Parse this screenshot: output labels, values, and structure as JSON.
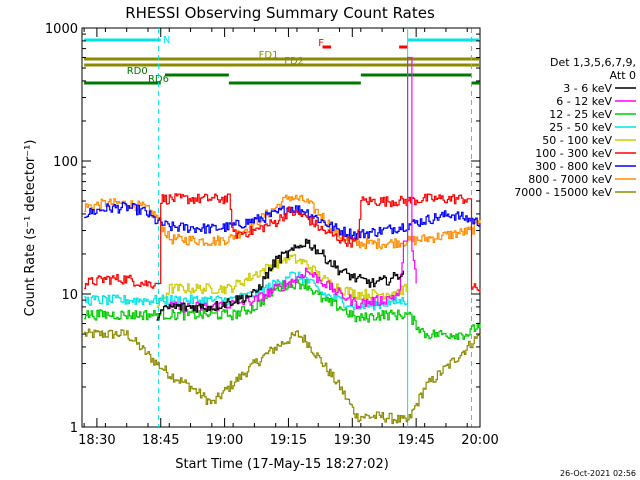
{
  "chart_data": {
    "type": "line",
    "title": "RHESSI Observing Summary Count Rates",
    "xlabel": "Start Time (17-May-15 18:27:02)",
    "ylabel": "Count Rate (s⁻¹ detector⁻¹)",
    "yscale": "log",
    "ylim": [
      1,
      1000
    ],
    "xlim": [
      -0.5,
      93
    ],
    "x_unit": "minutes after 18:27:02",
    "y_ticks": [
      {
        "v": 1,
        "label": "1"
      },
      {
        "v": 10,
        "label": "10"
      },
      {
        "v": 100,
        "label": "100"
      },
      {
        "v": 1000,
        "label": "1000"
      }
    ],
    "x_ticks": [
      {
        "t": 3,
        "label": "18:30"
      },
      {
        "t": 18,
        "label": "18:45"
      },
      {
        "t": 33,
        "label": "19:00"
      },
      {
        "t": 48,
        "label": "19:15"
      },
      {
        "t": 63,
        "label": "19:30"
      },
      {
        "t": 78,
        "label": "19:45"
      },
      {
        "t": 93,
        "label": "20:00"
      }
    ],
    "legend": {
      "position": "right",
      "header": [
        "Det 1,3,5,6,7,9,",
        "Att 0"
      ],
      "entries": [
        {
          "label": "3 - 6 keV",
          "color": "#000000"
        },
        {
          "label": "6 - 12 keV",
          "color": "#ff00ff"
        },
        {
          "label": "12 - 25 keV",
          "color": "#00cc00"
        },
        {
          "label": "25 - 50 keV",
          "color": "#00e5e5"
        },
        {
          "label": "50 - 100 keV",
          "color": "#cccc00"
        },
        {
          "label": "100 - 300 keV",
          "color": "#ff0000"
        },
        {
          "label": "300 - 800 keV",
          "color": "#0000ff"
        },
        {
          "label": "800 - 7000 keV",
          "color": "#ff8c00"
        },
        {
          "label": "7000 - 15000 keV",
          "color": "#8b8b00"
        }
      ]
    },
    "bands": [
      {
        "label": "N",
        "color": "#00e5e5",
        "segments": [
          [
            0,
            18
          ],
          [
            76,
            93
          ]
        ],
        "level": 1
      },
      {
        "label": "F",
        "color": "#ff0000",
        "segments": [
          [
            56,
            58
          ],
          [
            74,
            76
          ]
        ],
        "level": 2
      },
      {
        "label": "FD1",
        "color": "#8b8b00",
        "segments": [
          [
            0,
            93
          ]
        ],
        "level": 3
      },
      {
        "label": "FD2",
        "color": "#8b8b00",
        "segments": [
          [
            0,
            93
          ]
        ],
        "level": 4
      },
      {
        "label": "RD0",
        "color": "#007700",
        "segments": [
          [
            19,
            34
          ],
          [
            65,
            91
          ]
        ],
        "level": 5
      },
      {
        "label": "RD6",
        "color": "#007700",
        "segments": [
          [
            0,
            18
          ],
          [
            34,
            65
          ],
          [
            91,
            93
          ]
        ],
        "level": 6
      }
    ],
    "markers": [
      {
        "t": 17.5,
        "color": "#00e5e5",
        "style": "dashed"
      },
      {
        "t": 76,
        "color": "#00e5e5",
        "style": "solid"
      },
      {
        "t": 91,
        "color": "#00e5e5",
        "style": "dashed"
      }
    ],
    "series": [
      {
        "name": "3 - 6 keV",
        "color": "#000000",
        "points": [
          [
            17,
            7
          ],
          [
            20,
            8
          ],
          [
            30,
            8
          ],
          [
            40,
            10
          ],
          [
            45,
            18
          ],
          [
            50,
            22
          ],
          [
            52,
            25
          ],
          [
            55,
            21
          ],
          [
            60,
            15
          ],
          [
            64,
            13
          ],
          [
            68,
            12
          ],
          [
            72,
            13
          ],
          [
            74,
            14
          ],
          [
            75,
            15
          ]
        ]
      },
      {
        "name": "6 - 12 keV",
        "color": "#ff00ff",
        "points": [
          [
            20,
            8
          ],
          [
            30,
            8
          ],
          [
            40,
            9
          ],
          [
            45,
            11
          ],
          [
            50,
            13
          ],
          [
            52,
            15
          ],
          [
            55,
            13
          ],
          [
            60,
            10
          ],
          [
            64,
            8.5
          ],
          [
            70,
            9
          ],
          [
            74,
            10
          ],
          [
            75,
            25
          ],
          [
            76,
            600
          ],
          [
            77,
            20
          ],
          [
            78,
            12
          ]
        ]
      },
      {
        "name": "12 - 25 keV",
        "color": "#00cc00",
        "points": [
          [
            0,
            7
          ],
          [
            10,
            7
          ],
          [
            17,
            7
          ],
          [
            20,
            7
          ],
          [
            30,
            7
          ],
          [
            35,
            7
          ],
          [
            40,
            8
          ],
          [
            45,
            11
          ],
          [
            48,
            12
          ],
          [
            52,
            12
          ],
          [
            56,
            9
          ],
          [
            60,
            8
          ],
          [
            64,
            6.5
          ],
          [
            70,
            7
          ],
          [
            76,
            7
          ],
          [
            80,
            5
          ],
          [
            90,
            5
          ],
          [
            93,
            6
          ]
        ]
      },
      {
        "name": "25 - 50 keV",
        "color": "#00e5e5",
        "points": [
          [
            0,
            9
          ],
          [
            10,
            9
          ],
          [
            17,
            9
          ],
          [
            20,
            9
          ],
          [
            30,
            9
          ],
          [
            34,
            9
          ],
          [
            40,
            10
          ],
          [
            45,
            12
          ],
          [
            48,
            14
          ],
          [
            52,
            13
          ],
          [
            56,
            10
          ],
          [
            60,
            9
          ],
          [
            64,
            8
          ],
          [
            70,
            8.5
          ],
          [
            76,
            9
          ]
        ]
      },
      {
        "name": "50 - 100 keV",
        "color": "#cccc00",
        "points": [
          [
            17,
            8
          ],
          [
            20,
            11
          ],
          [
            30,
            11
          ],
          [
            34,
            11
          ],
          [
            40,
            14
          ],
          [
            45,
            17
          ],
          [
            48,
            19
          ],
          [
            52,
            17
          ],
          [
            56,
            13
          ],
          [
            60,
            11
          ],
          [
            64,
            10
          ],
          [
            70,
            10
          ],
          [
            76,
            11
          ]
        ]
      },
      {
        "name": "100 - 300 keV",
        "color": "#ff0000",
        "points": [
          [
            0,
            12
          ],
          [
            5,
            13
          ],
          [
            10,
            13
          ],
          [
            14,
            12
          ],
          [
            17,
            12
          ],
          [
            18,
            52
          ],
          [
            30,
            52
          ],
          [
            34,
            52
          ],
          [
            35,
            28
          ],
          [
            40,
            30
          ],
          [
            45,
            35
          ],
          [
            48,
            42
          ],
          [
            52,
            38
          ],
          [
            56,
            30
          ],
          [
            60,
            26
          ],
          [
            64,
            24
          ],
          [
            65,
            50
          ],
          [
            72,
            50
          ],
          [
            76,
            50
          ],
          [
            80,
            52
          ],
          [
            90,
            52
          ],
          [
            91,
            11
          ],
          [
            93,
            11
          ]
        ]
      },
      {
        "name": "300 - 800 keV",
        "color": "#0000ff",
        "points": [
          [
            0,
            40
          ],
          [
            5,
            44
          ],
          [
            10,
            45
          ],
          [
            14,
            42
          ],
          [
            17,
            35
          ],
          [
            20,
            32
          ],
          [
            30,
            31
          ],
          [
            34,
            32
          ],
          [
            40,
            36
          ],
          [
            45,
            40
          ],
          [
            48,
            45
          ],
          [
            52,
            42
          ],
          [
            56,
            35
          ],
          [
            60,
            30
          ],
          [
            64,
            28
          ],
          [
            70,
            30
          ],
          [
            76,
            33
          ],
          [
            80,
            36
          ],
          [
            86,
            40
          ],
          [
            91,
            36
          ],
          [
            93,
            34
          ]
        ]
      },
      {
        "name": "800 - 7000 keV",
        "color": "#ff8c00",
        "points": [
          [
            0,
            45
          ],
          [
            5,
            48
          ],
          [
            10,
            48
          ],
          [
            14,
            45
          ],
          [
            17,
            38
          ],
          [
            20,
            26
          ],
          [
            30,
            25
          ],
          [
            34,
            26
          ],
          [
            40,
            34
          ],
          [
            45,
            45
          ],
          [
            48,
            54
          ],
          [
            52,
            50
          ],
          [
            56,
            38
          ],
          [
            60,
            27
          ],
          [
            64,
            24
          ],
          [
            70,
            24
          ],
          [
            76,
            25
          ],
          [
            80,
            26
          ],
          [
            86,
            28
          ],
          [
            91,
            30
          ],
          [
            93,
            36
          ]
        ]
      },
      {
        "name": "7000 - 15000 keV",
        "color": "#8b8b00",
        "points": [
          [
            0,
            5
          ],
          [
            10,
            5
          ],
          [
            17,
            3
          ],
          [
            20,
            2.5
          ],
          [
            25,
            2
          ],
          [
            30,
            1.5
          ],
          [
            34,
            2
          ],
          [
            40,
            3
          ],
          [
            45,
            4
          ],
          [
            50,
            5
          ],
          [
            52,
            4.5
          ],
          [
            56,
            3
          ],
          [
            60,
            2
          ],
          [
            64,
            1.2
          ],
          [
            70,
            1.2
          ],
          [
            76,
            1.1
          ],
          [
            80,
            2
          ],
          [
            86,
            3
          ],
          [
            90,
            4
          ],
          [
            93,
            5
          ]
        ]
      }
    ],
    "timestamp": "26-Oct-2021 02:56"
  }
}
